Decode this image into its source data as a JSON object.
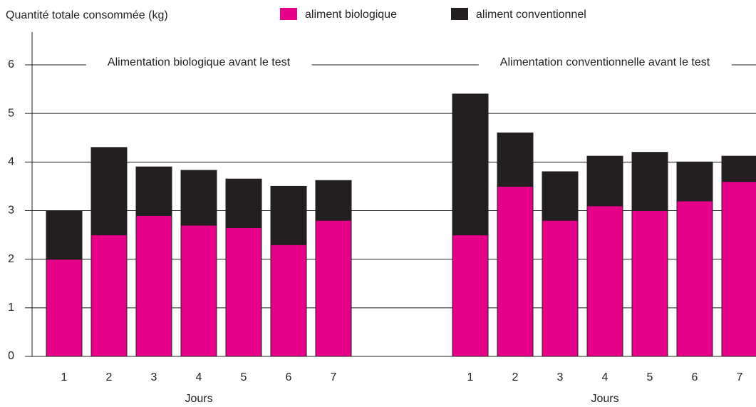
{
  "chart_data": {
    "type": "bar",
    "stacked": true,
    "y_label": "Quantité totale consommée (kg)",
    "ylim": [
      0,
      6
    ],
    "yticks": [
      0,
      1,
      2,
      3,
      4,
      5,
      6
    ],
    "grid": true,
    "categories": [
      "1",
      "2",
      "3",
      "4",
      "5",
      "6",
      "7",
      "1",
      "2",
      "3",
      "4",
      "5",
      "6",
      "7"
    ],
    "series": [
      {
        "name": "aliment biologique",
        "color": "#e6008a",
        "values": [
          2,
          2.5,
          2.9,
          2.7,
          2.65,
          2.3,
          2.8,
          2.5,
          3.5,
          2.8,
          3.1,
          3.0,
          3.2,
          3.6
        ]
      },
      {
        "name": "aliment conventionnel",
        "color": "#231f20",
        "values": [
          1,
          1.8,
          1,
          1.13,
          1,
          1.2,
          0.82,
          2.9,
          1.1,
          1.0,
          1.02,
          1.2,
          0.8,
          0.52
        ]
      }
    ],
    "groups": [
      {
        "title": "Alimentation biologique avant le test",
        "x_label": "Jours"
      },
      {
        "title": "Alimentation conventionnelle avant le test",
        "x_label": "Jours"
      }
    ]
  }
}
